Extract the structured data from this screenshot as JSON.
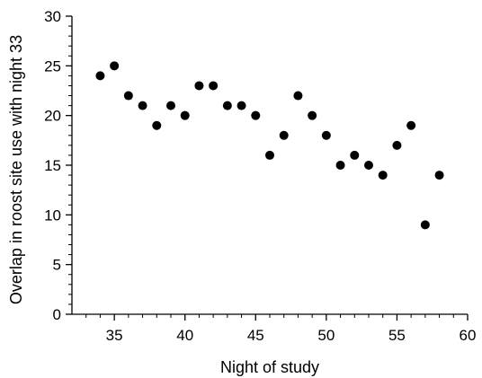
{
  "chart_data": {
    "type": "scatter",
    "title": "",
    "xlabel": "Night of study",
    "ylabel": "Overlap in roost site use with night 33",
    "xlim": [
      32,
      60
    ],
    "ylim": [
      0,
      30
    ],
    "x_major_ticks": [
      35,
      40,
      45,
      50,
      55,
      60
    ],
    "x_minor_ticks": [
      33,
      34,
      36,
      37,
      38,
      39,
      41,
      42,
      43,
      44,
      46,
      47,
      48,
      49,
      51,
      52,
      53,
      54,
      56,
      57,
      58,
      59
    ],
    "y_major_ticks": [
      0,
      5,
      10,
      15,
      20,
      25,
      30
    ],
    "y_minor_ticks": [
      1,
      2,
      3,
      4,
      6,
      7,
      8,
      9,
      11,
      12,
      13,
      14,
      16,
      17,
      18,
      19,
      21,
      22,
      23,
      24,
      26,
      27,
      28,
      29
    ],
    "grid": false,
    "marker_color": "#000000",
    "series": [
      {
        "points": [
          {
            "x": 34,
            "y": 24
          },
          {
            "x": 35,
            "y": 25
          },
          {
            "x": 36,
            "y": 22
          },
          {
            "x": 37,
            "y": 21
          },
          {
            "x": 38,
            "y": 19
          },
          {
            "x": 39,
            "y": 21
          },
          {
            "x": 40,
            "y": 20
          },
          {
            "x": 41,
            "y": 23
          },
          {
            "x": 42,
            "y": 23
          },
          {
            "x": 43,
            "y": 21
          },
          {
            "x": 44,
            "y": 21
          },
          {
            "x": 45,
            "y": 20
          },
          {
            "x": 46,
            "y": 16
          },
          {
            "x": 47,
            "y": 18
          },
          {
            "x": 48,
            "y": 22
          },
          {
            "x": 49,
            "y": 20
          },
          {
            "x": 50,
            "y": 18
          },
          {
            "x": 51,
            "y": 15
          },
          {
            "x": 52,
            "y": 16
          },
          {
            "x": 53,
            "y": 15
          },
          {
            "x": 54,
            "y": 14
          },
          {
            "x": 55,
            "y": 17
          },
          {
            "x": 56,
            "y": 19
          },
          {
            "x": 57,
            "y": 9
          },
          {
            "x": 58,
            "y": 14
          }
        ]
      }
    ]
  }
}
